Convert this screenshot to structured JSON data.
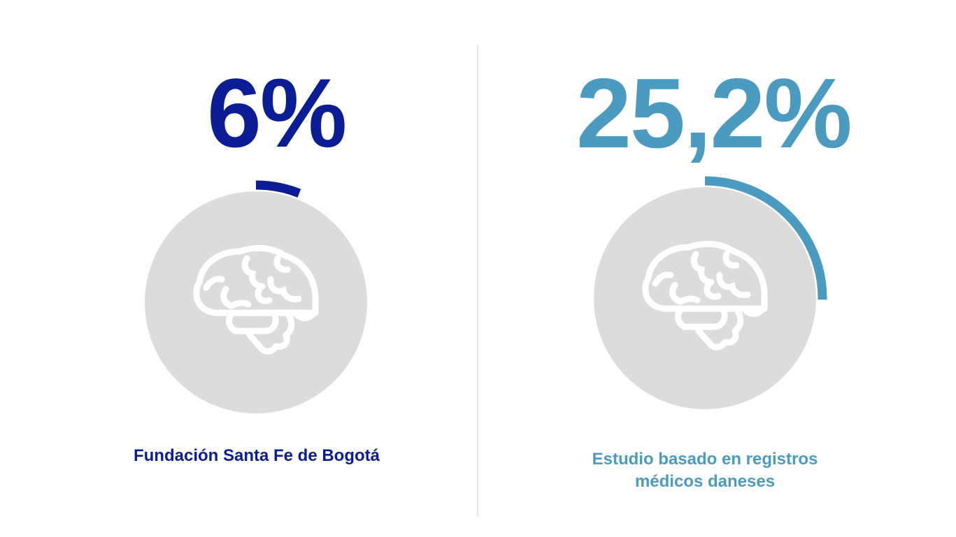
{
  "colors": {
    "left_accent": "#0b1d94",
    "right_accent": "#4a9bbf",
    "circle_bg": "#dcdcdc",
    "icon": "#ffffff",
    "divider": "#e4e4e4"
  },
  "stats": [
    {
      "value_text": "6%",
      "percent": 6,
      "icon": "brain-icon",
      "caption": "Fundación Santa Fe de Bogotá"
    },
    {
      "value_text": "25,2%",
      "percent": 25.2,
      "icon": "brain-icon",
      "caption_lines": [
        "Estudio basado en registros",
        "médicos daneses"
      ]
    }
  ]
}
